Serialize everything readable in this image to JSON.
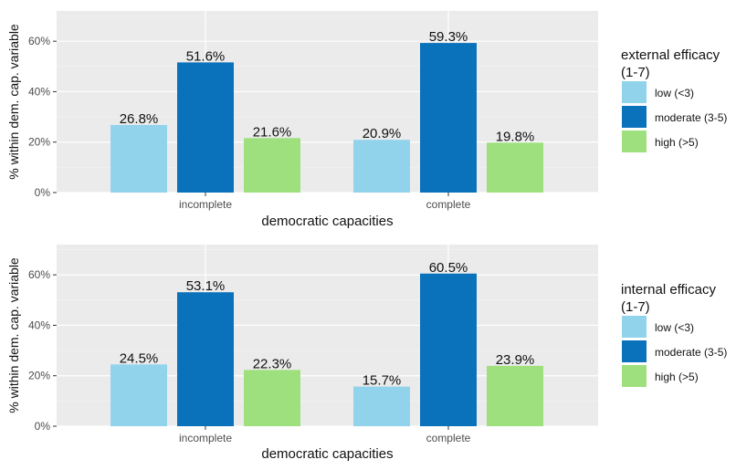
{
  "chart_data": [
    {
      "type": "bar",
      "categories": [
        "incomplete",
        "complete"
      ],
      "xlabel": "democratic capacities",
      "ylabel": "% within dem. cap. variable",
      "ylim": [
        0,
        72
      ],
      "yticks": [
        "0%",
        "20%",
        "40%",
        "60%"
      ],
      "legend_title": "external efficacy\n(1-7)",
      "legend_position": "right",
      "grid": true,
      "series": [
        {
          "name": "low (<3)",
          "color": "#92d3ec",
          "values": [
            26.8,
            20.9
          ],
          "labels": [
            "26.8%",
            "20.9%"
          ]
        },
        {
          "name": "moderate (3-5)",
          "color": "#0a72bb",
          "values": [
            51.6,
            59.3
          ],
          "labels": [
            "51.6%",
            "59.3%"
          ]
        },
        {
          "name": "high (>5)",
          "color": "#9ee07d",
          "values": [
            21.6,
            19.8
          ],
          "labels": [
            "21.6%",
            "19.8%"
          ]
        }
      ]
    },
    {
      "type": "bar",
      "categories": [
        "incomplete",
        "complete"
      ],
      "xlabel": "democratic capacities",
      "ylabel": "% within dem. cap. variable",
      "ylim": [
        0,
        72
      ],
      "yticks": [
        "0%",
        "20%",
        "40%",
        "60%"
      ],
      "legend_title": "internal efficacy\n(1-7)",
      "legend_position": "right",
      "grid": true,
      "series": [
        {
          "name": "low (<3)",
          "color": "#92d3ec",
          "values": [
            24.5,
            15.7
          ],
          "labels": [
            "24.5%",
            "15.7%"
          ]
        },
        {
          "name": "moderate (3-5)",
          "color": "#0a72bb",
          "values": [
            53.1,
            60.5
          ],
          "labels": [
            "53.1%",
            "60.5%"
          ]
        },
        {
          "name": "high (>5)",
          "color": "#9ee07d",
          "values": [
            22.3,
            23.9
          ],
          "labels": [
            "22.3%",
            "23.9%"
          ]
        }
      ]
    }
  ]
}
